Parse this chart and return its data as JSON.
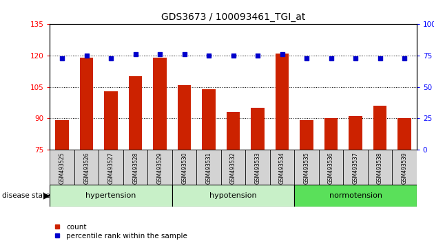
{
  "title": "GDS3673 / 100093461_TGI_at",
  "samples": [
    "GSM493525",
    "GSM493526",
    "GSM493527",
    "GSM493528",
    "GSM493529",
    "GSM493530",
    "GSM493531",
    "GSM493532",
    "GSM493533",
    "GSM493534",
    "GSM493535",
    "GSM493536",
    "GSM493537",
    "GSM493538",
    "GSM493539"
  ],
  "counts": [
    89,
    119,
    103,
    110,
    119,
    106,
    104,
    93,
    95,
    121,
    89,
    90,
    91,
    96,
    90
  ],
  "percentiles": [
    73,
    75,
    73,
    76,
    76,
    76,
    75,
    75,
    75,
    76,
    73,
    73,
    73,
    73,
    73
  ],
  "ylim_left": [
    75,
    135
  ],
  "ylim_right": [
    0,
    100
  ],
  "yticks_left": [
    75,
    90,
    105,
    120,
    135
  ],
  "yticks_right": [
    0,
    25,
    50,
    75,
    100
  ],
  "bar_color": "#cc2200",
  "dot_color": "#0000cc",
  "title_fontsize": 10,
  "tick_fontsize": 7.5,
  "group_label_fontsize": 8,
  "legend_fontsize": 7.5,
  "group_data": [
    {
      "label": "hypertension",
      "start": 0,
      "end": 4,
      "color": "#c8f0c8"
    },
    {
      "label": "hypotension",
      "start": 5,
      "end": 9,
      "color": "#c8f0c8"
    },
    {
      "label": "normotension",
      "start": 10,
      "end": 14,
      "color": "#5ae05a"
    }
  ]
}
